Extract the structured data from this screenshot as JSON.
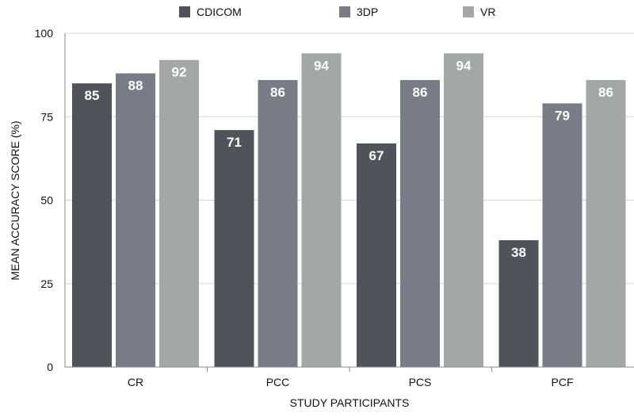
{
  "chart_data": {
    "type": "bar",
    "title": "",
    "xlabel": "STUDY PARTICIPANTS",
    "ylabel": "MEAN ACCURACY SCORE (%)",
    "categories": [
      "CR",
      "PCC",
      "PCS",
      "PCF"
    ],
    "series": [
      {
        "name": "CDICOM",
        "color": "#50545a",
        "values": [
          85,
          71,
          67,
          38
        ]
      },
      {
        "name": "3DP",
        "color": "#777c86",
        "values": [
          88,
          86,
          86,
          79
        ]
      },
      {
        "name": "VR",
        "color": "#a3a7a7",
        "values": [
          92,
          94,
          94,
          86
        ]
      }
    ],
    "ylim": [
      0,
      100
    ],
    "yticks": [
      "0",
      "25",
      "50",
      "75",
      "100"
    ],
    "grid": true,
    "legend": "top",
    "data_labels": true
  }
}
